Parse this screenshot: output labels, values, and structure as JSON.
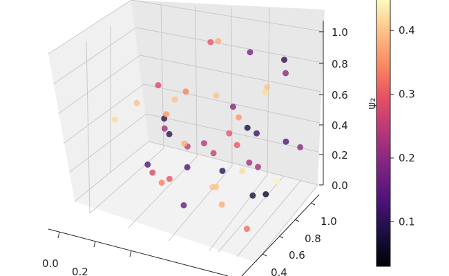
{
  "chart_data": {
    "type": "scatter",
    "projection": "3d",
    "grid": true,
    "legend": "none",
    "colormap": "magma",
    "xticks": [
      "0.0",
      "0.2"
    ],
    "yticks": [
      "0.4",
      "0.6",
      "0.8",
      "1.0"
    ],
    "zticks": [
      "0.0",
      "0.2",
      "0.4",
      "0.6",
      "0.8",
      "1.0"
    ],
    "zlabel": "ψ₂",
    "xlim": [
      0,
      1
    ],
    "ylim": [
      0,
      1
    ],
    "zlim": [
      0,
      1
    ],
    "colorbar": {
      "ticks": [
        "0.1",
        "0.2",
        "0.3",
        "0.4"
      ],
      "range": [
        0.03,
        0.45
      ]
    },
    "points": [
      {
        "x": 0.93,
        "y": 0.3,
        "z": 0.95,
        "c": 0.42
      },
      {
        "x": 0.86,
        "y": 0.5,
        "z": 0.88,
        "c": 0.4
      },
      {
        "x": 0.7,
        "y": 0.66,
        "z": 0.98,
        "c": 0.18
      },
      {
        "x": 0.5,
        "y": 0.72,
        "z": 0.95,
        "c": 0.38
      },
      {
        "x": 0.88,
        "y": 0.7,
        "z": 0.9,
        "c": 0.2
      },
      {
        "x": 0.84,
        "y": 0.78,
        "z": 0.94,
        "c": 0.1
      },
      {
        "x": 0.4,
        "y": 0.86,
        "z": 0.85,
        "c": 0.3
      },
      {
        "x": 0.62,
        "y": 0.4,
        "z": 0.77,
        "c": 0.4
      },
      {
        "x": 0.38,
        "y": 0.2,
        "z": 0.82,
        "c": 0.28
      },
      {
        "x": 0.76,
        "y": 0.36,
        "z": 0.7,
        "c": 0.36
      },
      {
        "x": 0.28,
        "y": 0.82,
        "z": 0.5,
        "c": 0.34
      },
      {
        "x": 0.72,
        "y": 0.6,
        "z": 0.3,
        "c": 0.22
      },
      {
        "x": 0.55,
        "y": 0.18,
        "z": 0.5,
        "c": 0.25
      },
      {
        "x": 0.18,
        "y": 0.4,
        "z": 0.55,
        "c": 0.4
      },
      {
        "x": 0.8,
        "y": 0.9,
        "z": 0.35,
        "c": 0.14
      },
      {
        "x": 0.55,
        "y": 0.85,
        "z": 0.25,
        "c": 0.3
      },
      {
        "x": 0.6,
        "y": 0.8,
        "z": 0.12,
        "c": 0.42
      },
      {
        "x": 0.25,
        "y": 0.6,
        "z": 0.4,
        "c": 0.1
      },
      {
        "x": 0.5,
        "y": 0.92,
        "z": 0.45,
        "c": 0.2
      },
      {
        "x": 0.35,
        "y": 0.5,
        "z": 0.6,
        "c": 0.4
      },
      {
        "x": 0.65,
        "y": 0.5,
        "z": 0.5,
        "c": 0.3
      },
      {
        "x": 0.72,
        "y": 0.7,
        "z": 0.45,
        "c": 0.12
      },
      {
        "x": 0.45,
        "y": 0.65,
        "z": 0.3,
        "c": 0.24
      },
      {
        "x": 0.3,
        "y": 0.75,
        "z": 0.2,
        "c": 0.38
      },
      {
        "x": 0.85,
        "y": 0.4,
        "z": 0.4,
        "c": 0.22
      },
      {
        "x": 0.4,
        "y": 0.9,
        "z": 0.12,
        "c": 0.26
      },
      {
        "x": 0.1,
        "y": 0.3,
        "z": 0.45,
        "c": 0.42
      },
      {
        "x": 0.62,
        "y": 0.82,
        "z": 0.4,
        "c": 0.08
      },
      {
        "x": 0.2,
        "y": 0.75,
        "z": 0.35,
        "c": 0.36
      },
      {
        "x": 0.58,
        "y": 0.58,
        "z": 0.2,
        "c": 0.1
      },
      {
        "x": 0.5,
        "y": 0.3,
        "z": 0.3,
        "c": 0.14
      },
      {
        "x": 0.68,
        "y": 0.2,
        "z": 0.28,
        "c": 0.4
      },
      {
        "x": 0.4,
        "y": 0.2,
        "z": 0.2,
        "c": 0.34
      },
      {
        "x": 0.3,
        "y": 0.32,
        "z": 0.18,
        "c": 0.28
      },
      {
        "x": 0.78,
        "y": 0.5,
        "z": 0.15,
        "c": 0.08
      },
      {
        "x": 0.15,
        "y": 0.85,
        "z": 0.2,
        "c": 0.22
      },
      {
        "x": 0.88,
        "y": 0.58,
        "z": 0.25,
        "c": 0.44
      },
      {
        "x": 0.92,
        "y": 0.8,
        "z": 0.4,
        "c": 0.2
      },
      {
        "x": 0.36,
        "y": 0.4,
        "z": 0.42,
        "c": 0.1
      },
      {
        "x": 0.22,
        "y": 0.45,
        "z": 0.15,
        "c": 0.14
      },
      {
        "x": 0.52,
        "y": 0.64,
        "z": 0.05,
        "c": 0.4
      },
      {
        "x": 0.46,
        "y": 0.35,
        "z": 0.02,
        "c": 0.16
      },
      {
        "x": 0.75,
        "y": 0.75,
        "z": 0.05,
        "c": 0.06
      },
      {
        "x": 0.65,
        "y": 0.4,
        "z": 0.08,
        "c": 0.38
      },
      {
        "x": 0.3,
        "y": 0.55,
        "z": 0.05,
        "c": 0.3
      },
      {
        "x": 0.85,
        "y": 0.25,
        "z": 0.06,
        "c": 0.32
      }
    ]
  }
}
